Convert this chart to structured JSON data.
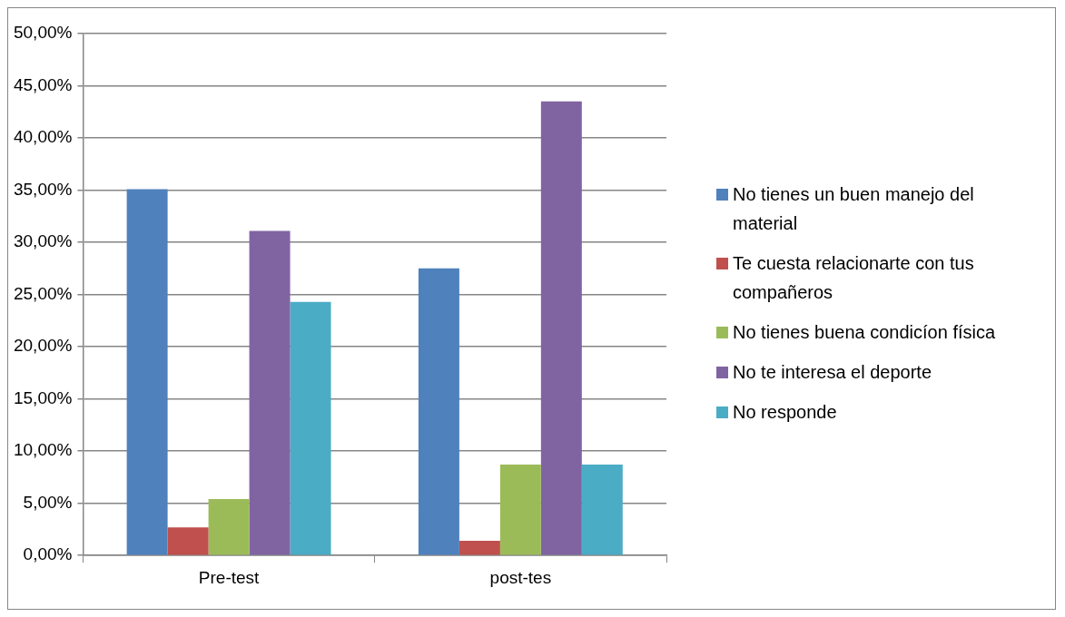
{
  "chart_data": {
    "type": "bar",
    "categories": [
      "Pre-test",
      "post-tes"
    ],
    "series": [
      {
        "name": "No tienes un buen manejo del material",
        "color": "#4f81bd",
        "values": [
          35.1,
          27.5
        ]
      },
      {
        "name": "Te cuesta relacionarte con tus compañeros",
        "color": "#c0504d",
        "values": [
          2.7,
          1.4
        ]
      },
      {
        "name": "No tienes buena condicíon física",
        "color": "#9bbb59",
        "values": [
          5.4,
          8.7
        ]
      },
      {
        "name": "No te interesa el deporte",
        "color": "#8064a2",
        "values": [
          31.1,
          43.5
        ]
      },
      {
        "name": "No responde",
        "color": "#4bacc6",
        "values": [
          24.3,
          8.7
        ]
      }
    ],
    "ylim": [
      0,
      50
    ],
    "yticks": [
      {
        "value": 0,
        "label": "0,00%"
      },
      {
        "value": 5,
        "label": "5,00%"
      },
      {
        "value": 10,
        "label": "10,00%"
      },
      {
        "value": 15,
        "label": "15,00%"
      },
      {
        "value": 20,
        "label": "20,00%"
      },
      {
        "value": 25,
        "label": "25,00%"
      },
      {
        "value": 30,
        "label": "30,00%"
      },
      {
        "value": 35,
        "label": "35,00%"
      },
      {
        "value": 40,
        "label": "40,00%"
      },
      {
        "value": 45,
        "label": "45,00%"
      },
      {
        "value": 50,
        "label": "50,00%"
      }
    ],
    "grid": "y",
    "legend": "right"
  }
}
